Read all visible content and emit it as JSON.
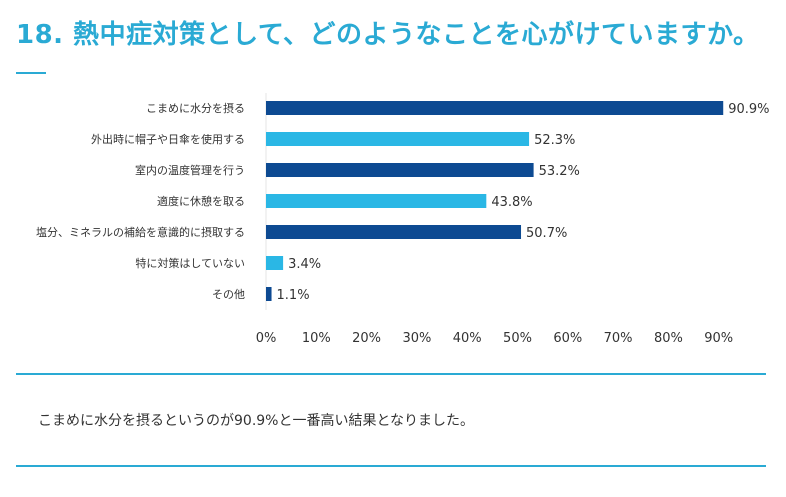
{
  "title": "18. 熱中症対策として、どのようなことを心がけていますか。",
  "summary": "こまめに水分を摂るというのが90.9%と一番高い結果となりました。",
  "colors": {
    "dark_bar": "#0d4a92",
    "light_bar": "#2ab7e5",
    "accent": "#2aaad4"
  },
  "chart_data": {
    "type": "bar",
    "orientation": "horizontal",
    "categories": [
      "こまめに水分を摂る",
      "外出時に帽子や日傘を使用する",
      "室内の温度管理を行う",
      "適度に休憩を取る",
      "塩分、ミネラルの補給を意識的に摂取する",
      "特に対策はしていない",
      "その他"
    ],
    "values": [
      90.9,
      52.3,
      53.2,
      43.8,
      50.7,
      3.4,
      1.1
    ],
    "value_labels": [
      "90.9%",
      "52.3%",
      "53.2%",
      "43.8%",
      "50.7%",
      "3.4%",
      "1.1%"
    ],
    "bar_colors": [
      "#0d4a92",
      "#2ab7e5",
      "#0d4a92",
      "#2ab7e5",
      "#0d4a92",
      "#2ab7e5",
      "#0d4a92"
    ],
    "x_ticks": [
      "0%",
      "10%",
      "20%",
      "30%",
      "40%",
      "50%",
      "60%",
      "70%",
      "80%",
      "90%"
    ],
    "xlim": [
      0,
      90
    ],
    "grid": false
  }
}
